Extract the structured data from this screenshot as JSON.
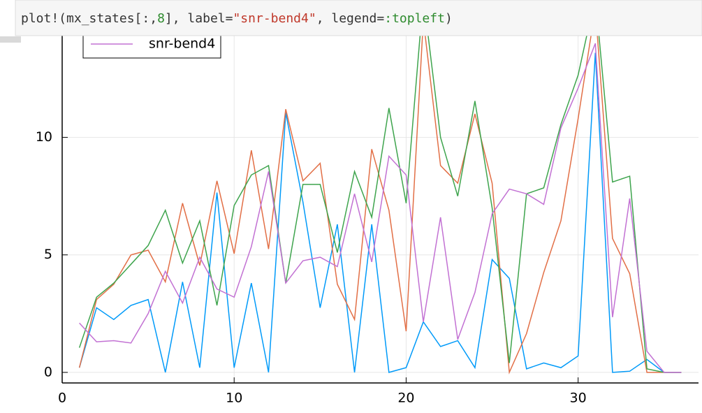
{
  "code_tokens": [
    "plot!(mx_states[:,",
    "8",
    "], label=",
    "\"snr-bend4\"",
    ", legend=",
    ":topleft",
    ")"
  ],
  "chart_data": {
    "type": "line",
    "x": [
      1,
      2,
      3,
      4,
      5,
      6,
      7,
      8,
      9,
      10,
      11,
      12,
      13,
      14,
      15,
      16,
      17,
      18,
      19,
      20,
      21,
      22,
      23,
      24,
      25,
      26,
      27,
      28,
      29,
      30,
      31,
      32,
      33,
      34,
      35,
      36
    ],
    "xlim": [
      0,
      37
    ],
    "xticks": [
      0,
      10,
      20,
      30
    ],
    "ylim": [
      -0.45,
      14.3
    ],
    "yticks": [
      0,
      5,
      10
    ],
    "grid": true,
    "legend": "topleft",
    "series": [
      {
        "color": "#009af9",
        "values": [
          0.2,
          2.75,
          2.25,
          2.85,
          3.1,
          0,
          3.85,
          0.2,
          7.65,
          0.2,
          3.8,
          0,
          11.05,
          7.25,
          2.75,
          6.3,
          0,
          6.3,
          0,
          0.2,
          2.15,
          1.1,
          1.35,
          0.2,
          4.8,
          4.0,
          0.15,
          0.4,
          0.2,
          0.7,
          13.6,
          0,
          0.05,
          0.55,
          0,
          0
        ]
      },
      {
        "color": "#e26f46",
        "values": [
          0.2,
          3.1,
          3.75,
          5.0,
          5.2,
          3.85,
          7.2,
          4.55,
          8.15,
          5.05,
          9.45,
          5.25,
          11.2,
          8.15,
          8.9,
          3.75,
          2.25,
          9.5,
          6.9,
          1.75,
          15,
          8.8,
          8.05,
          11.0,
          8.05,
          0,
          1.65,
          4.25,
          6.45,
          10.8,
          15.5,
          5.7,
          4.2,
          0,
          0,
          0
        ]
      },
      {
        "color": "#3ea44d",
        "values": [
          1.05,
          3.2,
          3.8,
          4.6,
          5.4,
          6.9,
          4.65,
          6.45,
          2.85,
          7.1,
          8.4,
          8.8,
          3.8,
          8.0,
          8.0,
          5.1,
          8.55,
          6.6,
          11.25,
          7.2,
          16,
          10.0,
          7.5,
          11.55,
          7.0,
          0.4,
          7.6,
          7.85,
          10.55,
          12.65,
          16,
          8.1,
          8.35,
          0.15,
          0,
          0
        ]
      },
      {
        "name": "snr-bend4",
        "color": "#c271d3",
        "values": [
          2.1,
          1.3,
          1.35,
          1.25,
          2.5,
          4.3,
          2.95,
          4.9,
          3.55,
          3.2,
          5.35,
          8.55,
          3.8,
          4.75,
          4.9,
          4.5,
          7.6,
          4.7,
          9.2,
          8.4,
          2.15,
          6.6,
          1.4,
          3.4,
          6.75,
          7.8,
          7.6,
          7.15,
          10.4,
          12.1,
          14.0,
          2.35,
          7.4,
          0.9,
          0,
          0
        ]
      }
    ]
  }
}
